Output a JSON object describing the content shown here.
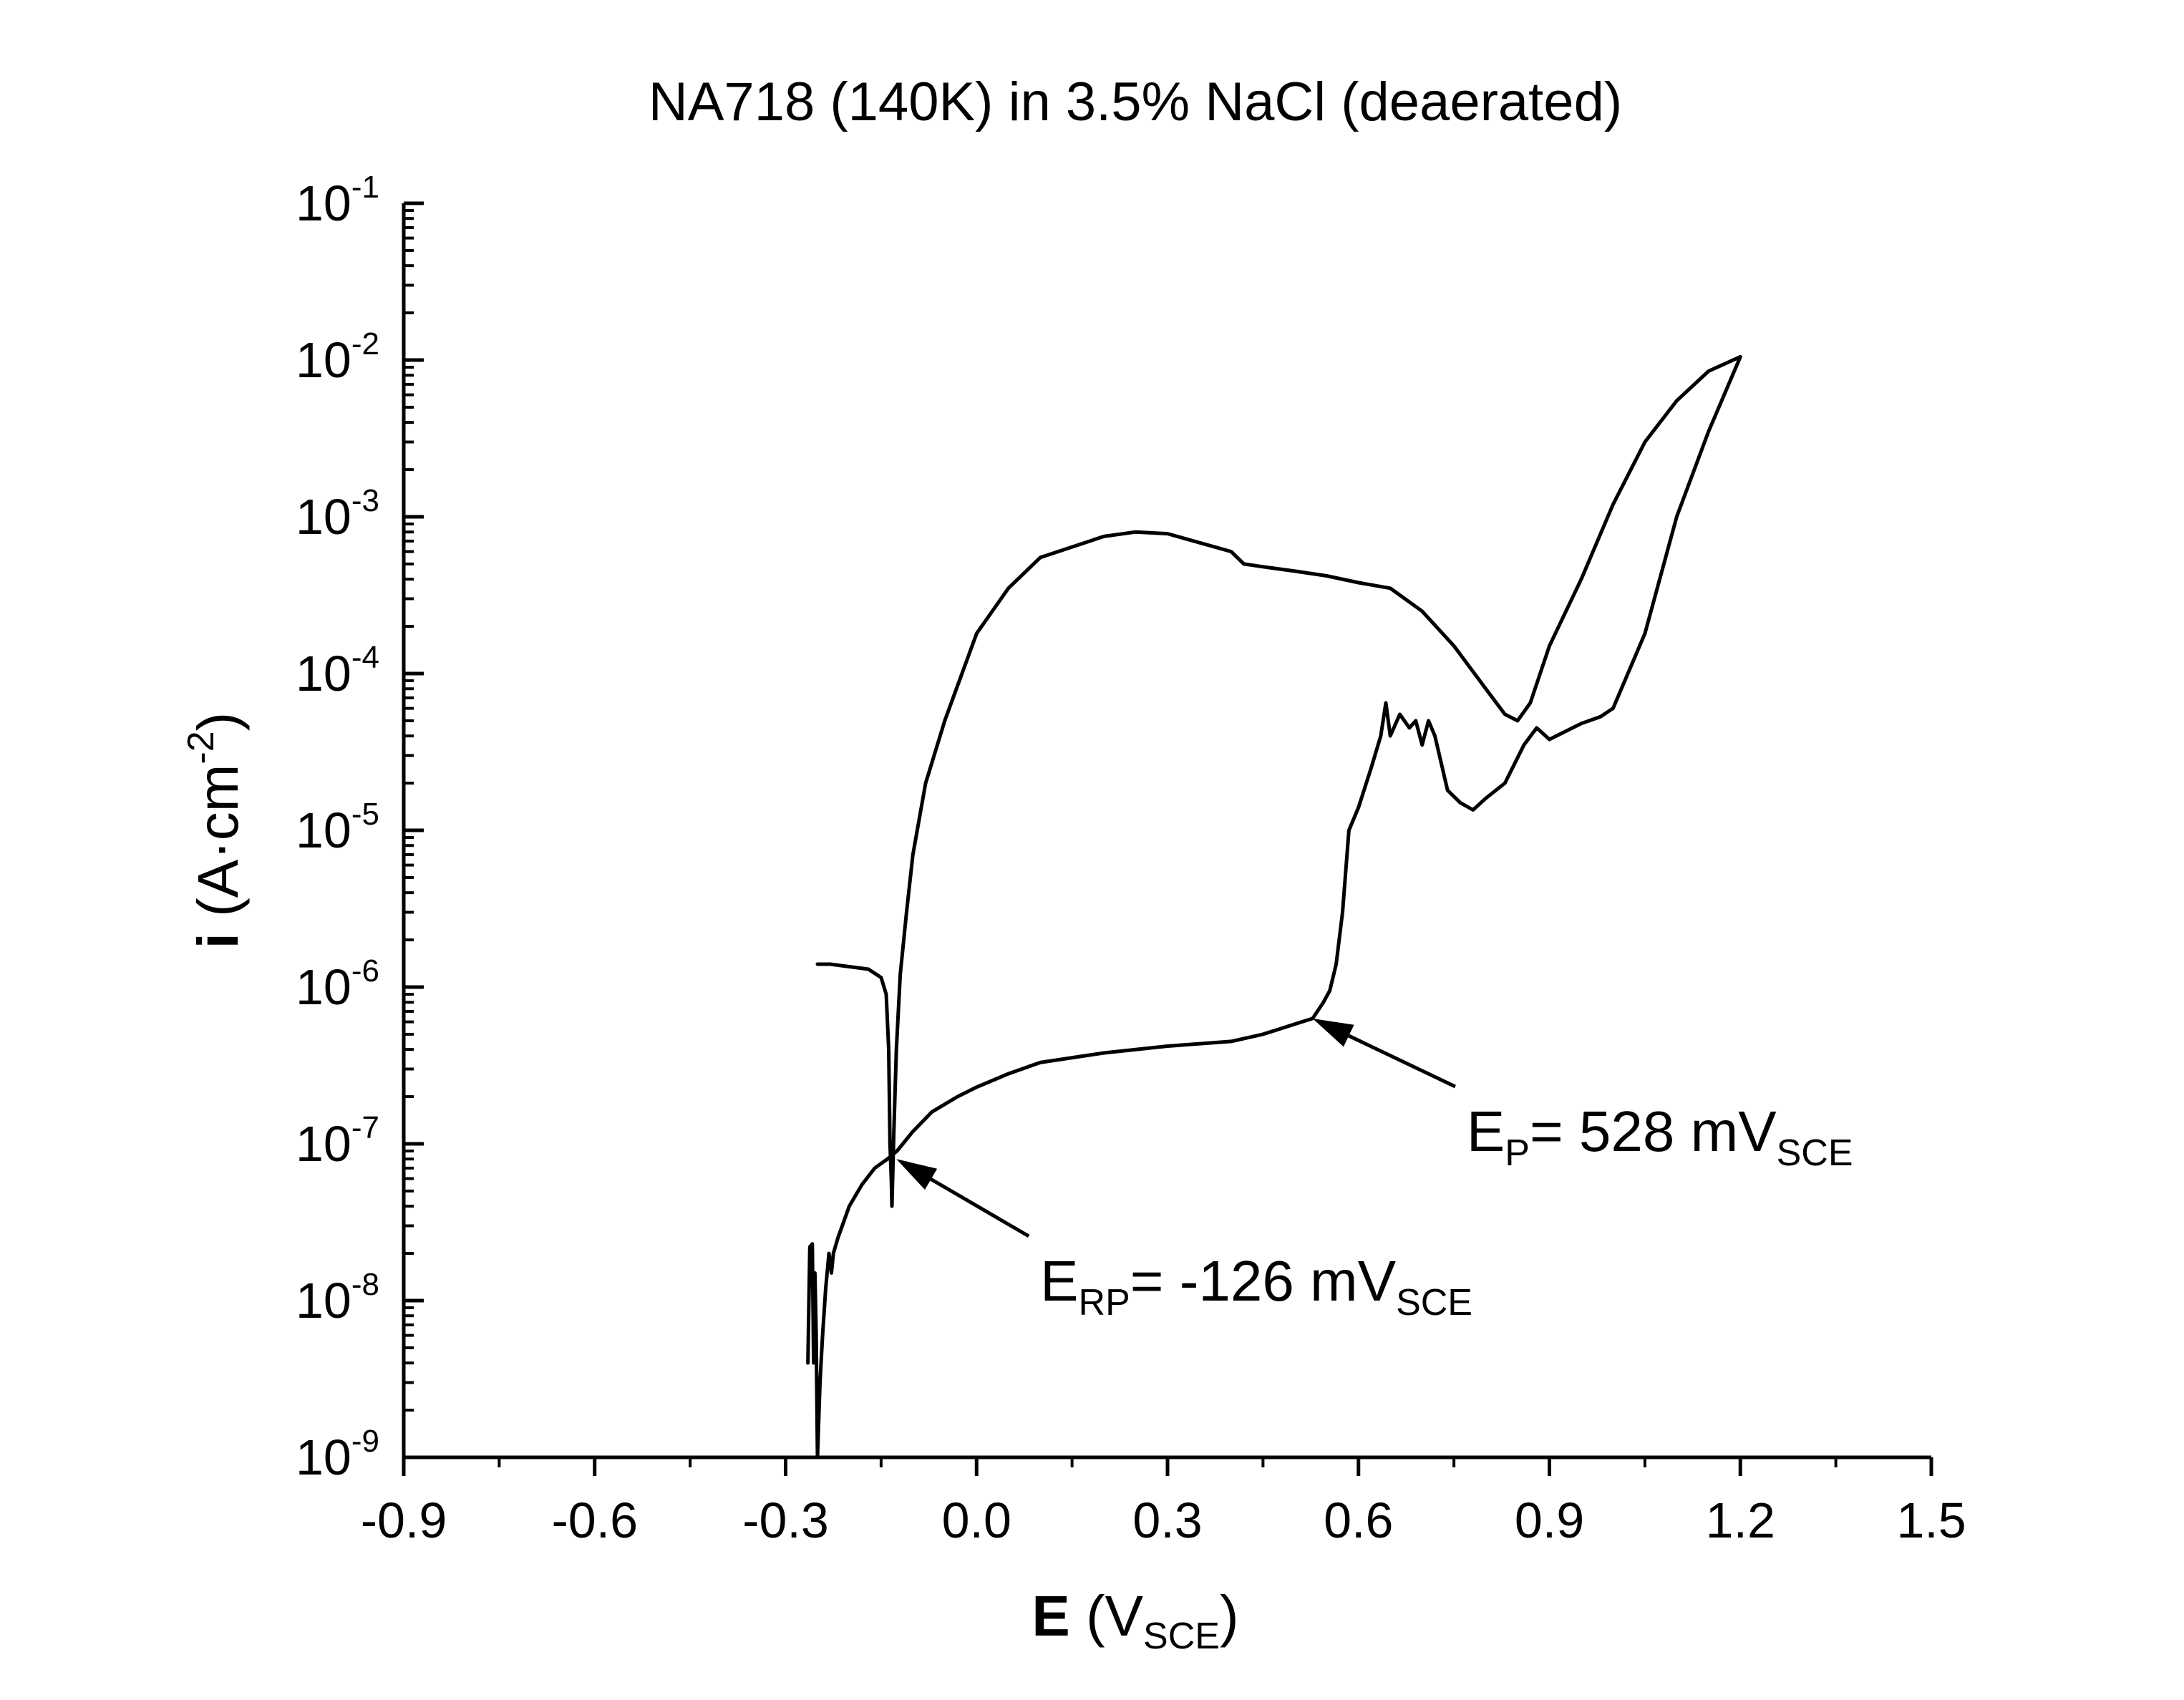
{
  "chart_data": {
    "type": "line",
    "title": "NA718 (140K) in 3.5% NaCl (deaerated)",
    "xlabel": {
      "bold": "E",
      "pre": " (V",
      "sub": "SCE",
      "post": ")"
    },
    "ylabel": {
      "bold": "i",
      "pre": " (A·cm",
      "sup": "-2",
      "post": ")"
    },
    "xlim": [
      -0.9,
      1.5
    ],
    "ylim": [
      1e-09,
      0.1
    ],
    "yscale": "log",
    "grid": false,
    "x_ticks": [
      "-0.9",
      "-0.6",
      "-0.3",
      "0.0",
      "0.3",
      "0.6",
      "0.9",
      "1.2",
      "1.5"
    ],
    "x_tick_values": [
      -0.9,
      -0.6,
      -0.3,
      0.0,
      0.3,
      0.6,
      0.9,
      1.2,
      1.5
    ],
    "y_ticks": [
      {
        "base": "10",
        "exp": "-9"
      },
      {
        "base": "10",
        "exp": "-8"
      },
      {
        "base": "10",
        "exp": "-7"
      },
      {
        "base": "10",
        "exp": "-6"
      },
      {
        "base": "10",
        "exp": "-5"
      },
      {
        "base": "10",
        "exp": "-4"
      },
      {
        "base": "10",
        "exp": "-3"
      },
      {
        "base": "10",
        "exp": "-2"
      },
      {
        "base": "10",
        "exp": "-1"
      }
    ],
    "y_tick_values": [
      1e-09,
      1e-08,
      1e-07,
      1e-06,
      1e-05,
      0.0001,
      0.001,
      0.01,
      0.1
    ],
    "series": [
      {
        "color": "#000000",
        "x": [
          -0.265,
          -0.262,
          -0.258,
          -0.256,
          -0.254,
          -0.252,
          -0.25,
          -0.246,
          -0.242,
          -0.237,
          -0.232,
          -0.228,
          -0.225,
          -0.218,
          -0.2,
          -0.18,
          -0.16,
          -0.14,
          -0.125,
          -0.1,
          -0.07,
          -0.03,
          0.0,
          0.05,
          0.1,
          0.2,
          0.3,
          0.4,
          0.45,
          0.5,
          0.528,
          0.545,
          0.555,
          0.565,
          0.575,
          0.585,
          0.6,
          0.62,
          0.635,
          0.643,
          0.65,
          0.665,
          0.68,
          0.69,
          0.7,
          0.71,
          0.72,
          0.74,
          0.76,
          0.78,
          0.8,
          0.83,
          0.86,
          0.88,
          0.9,
          0.95,
          0.98,
          1.0,
          1.05,
          1.1,
          1.15,
          1.2,
          1.15,
          1.1,
          1.05,
          1.0,
          0.95,
          0.9,
          0.87,
          0.85,
          0.83,
          0.8,
          0.75,
          0.7,
          0.65,
          0.6,
          0.55,
          0.5,
          0.45,
          0.42,
          0.4,
          0.3,
          0.25,
          0.2,
          0.1,
          0.05,
          0.0,
          -0.05,
          -0.08,
          -0.1,
          -0.11,
          -0.12,
          -0.126,
          -0.13,
          -0.133,
          -0.134,
          -0.136,
          -0.138,
          -0.142,
          -0.15,
          -0.17,
          -0.2,
          -0.23,
          -0.25
        ],
        "y": [
          4e-09,
          2.2e-08,
          2.3e-08,
          4e-09,
          1.5e-08,
          6e-09,
          1e-09,
          3e-09,
          6e-09,
          1.2e-08,
          2e-08,
          1.5e-08,
          2e-08,
          2.5e-08,
          4e-08,
          5.5e-08,
          7e-08,
          8e-08,
          9e-08,
          1.2e-07,
          1.6e-07,
          2e-07,
          2.3e-07,
          2.8e-07,
          3.3e-07,
          3.8e-07,
          4.2e-07,
          4.5e-07,
          5e-07,
          5.8e-07,
          6.3e-07,
          8e-07,
          9.5e-07,
          1.4e-06,
          3e-06,
          1e-05,
          1.4e-05,
          2.5e-05,
          4e-05,
          6.5e-05,
          4e-05,
          5.5e-05,
          4.5e-05,
          5e-05,
          3.5e-05,
          5e-05,
          4e-05,
          1.8e-05,
          1.5e-05,
          1.35e-05,
          1.6e-05,
          2e-05,
          3.5e-05,
          4.5e-05,
          3.8e-05,
          4.8e-05,
          5.3e-05,
          6e-05,
          0.00018,
          0.001,
          0.0035,
          0.0105,
          0.0085,
          0.0055,
          0.003,
          0.0012,
          0.0004,
          0.00015,
          6.5e-05,
          5e-05,
          5.5e-05,
          8e-05,
          0.00015,
          0.00025,
          0.00035,
          0.00038,
          0.00042,
          0.00045,
          0.00048,
          0.0005,
          0.0006,
          0.00078,
          0.0008,
          0.00075,
          0.00055,
          0.00035,
          0.00018,
          5e-05,
          2e-05,
          7e-06,
          3e-06,
          1.2e-06,
          4e-07,
          1.2e-07,
          4e-08,
          6e-08,
          1e-07,
          4e-07,
          9e-07,
          1.15e-06,
          1.3e-06,
          1.35e-06,
          1.4e-06,
          1.4e-06
        ]
      }
    ],
    "annotations": [
      {
        "pre": "E",
        "sub": "RP",
        "mid": "= -126 mV",
        "sub2": "SCE",
        "arrow_to": {
          "x": -0.126,
          "y": 8e-08
        },
        "text_at": {
          "x": 0.1,
          "y": 1e-08
        }
      },
      {
        "pre": "E",
        "sub": "P",
        "mid": "= 528 mV",
        "sub2": "SCE",
        "arrow_to": {
          "x": 0.528,
          "y": 6.3e-07
        },
        "text_at": {
          "x": 0.77,
          "y": 9e-08
        }
      }
    ]
  }
}
